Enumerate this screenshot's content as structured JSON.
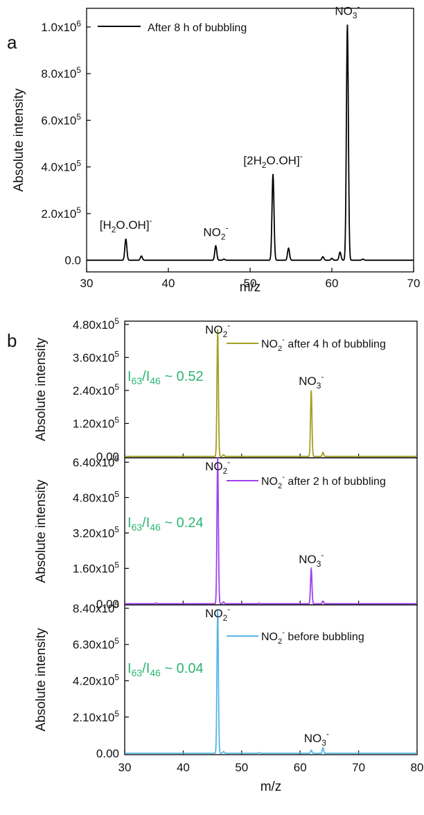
{
  "chart_data": [
    {
      "type": "line",
      "panel_label": "a",
      "xlabel": "m/z",
      "ylabel": "Absolute intensity",
      "xlim": [
        30,
        70
      ],
      "ylim": [
        -50000,
        1080000
      ],
      "x_ticks": [
        30,
        40,
        50,
        60,
        70
      ],
      "y_ticks": [
        {
          "value": 0,
          "label": "0.0"
        },
        {
          "value": 200000,
          "label": "2.0x10",
          "exp": "5"
        },
        {
          "value": 400000,
          "label": "4.0x10",
          "exp": "5"
        },
        {
          "value": 600000,
          "label": "6.0x10",
          "exp": "5"
        },
        {
          "value": 800000,
          "label": "8.0x10",
          "exp": "5"
        },
        {
          "value": 1000000,
          "label": "1.0x10",
          "exp": "6"
        }
      ],
      "legend_position": "top-left",
      "series": [
        {
          "name": "After 8 h of bubbling",
          "color": "#000000",
          "peaks": [
            [
              34.8,
              92000
            ],
            [
              36.7,
              18000
            ],
            [
              45.8,
              62000
            ],
            [
              46.8,
              5000
            ],
            [
              52.8,
              370000
            ],
            [
              54.7,
              52000
            ],
            [
              58.9,
              15000
            ],
            [
              60.0,
              8000
            ],
            [
              61.0,
              35000
            ],
            [
              61.9,
              1010000
            ],
            [
              63.8,
              5000
            ]
          ]
        }
      ],
      "annotations": [
        {
          "x": 34.8,
          "y": 92000,
          "label": "[H2O.OH]-",
          "parts": [
            [
              "[H",
              ""
            ],
            [
              "2",
              "sub"
            ],
            [
              "O.OH]",
              ""
            ],
            [
              "-",
              "sup"
            ]
          ]
        },
        {
          "x": 45.8,
          "y": 62000,
          "label": "NO2-",
          "parts": [
            [
              "NO",
              ""
            ],
            [
              "2",
              "sub"
            ],
            [
              "-",
              "sup"
            ]
          ]
        },
        {
          "x": 52.8,
          "y": 370000,
          "label": "[2H2O.OH]-",
          "parts": [
            [
              "[2H",
              ""
            ],
            [
              "2",
              "sub"
            ],
            [
              "O.OH]",
              ""
            ],
            [
              "-",
              "sup"
            ]
          ]
        },
        {
          "x": 61.9,
          "y": 1010000,
          "label": "NO3-",
          "parts": [
            [
              "NO",
              ""
            ],
            [
              "3",
              "sub"
            ],
            [
              "-",
              "sup"
            ]
          ]
        }
      ]
    },
    {
      "type": "line",
      "panel_label": "b",
      "xlabel": "m/z",
      "ylabel": "Absolute intensity",
      "xlim": [
        30,
        80
      ],
      "x_ticks": [
        30,
        40,
        50,
        60,
        70,
        80
      ],
      "stacked_panels": [
        {
          "series_name": "NO2- after 4 h of bubbling",
          "legend_parts": [
            [
              "NO",
              ""
            ],
            [
              "2",
              "sub"
            ],
            [
              "-",
              "sup"
            ],
            [
              " after 4 h of bubbling",
              ""
            ]
          ],
          "color": "#a3a020",
          "ratio_text": "I63/I46 ~ 0.52",
          "ylim": [
            -5000,
            492000
          ],
          "y_ticks": [
            {
              "value": 0,
              "label": "0.00"
            },
            {
              "value": 120000,
              "label": "1.20x10",
              "exp": "5"
            },
            {
              "value": 240000,
              "label": "2.40x10",
              "exp": "5"
            },
            {
              "value": 360000,
              "label": "3.60x10",
              "exp": "5"
            },
            {
              "value": 480000,
              "label": "4.80x10",
              "exp": "5"
            }
          ],
          "peaks": [
            [
              45.9,
              462000
            ],
            [
              46.9,
              6000
            ],
            [
              61.9,
              240000
            ],
            [
              63.9,
              15000
            ]
          ],
          "annotations": [
            {
              "x": 45.9,
              "y": 462000,
              "label": "NO2-",
              "parts": [
                [
                  "NO",
                  ""
                ],
                [
                  "2",
                  "sub"
                ],
                [
                  "-",
                  "sup"
                ]
              ]
            },
            {
              "x": 61.9,
              "y": 240000,
              "label": "NO3-",
              "parts": [
                [
                  "NO",
                  ""
                ],
                [
                  "3",
                  "sub"
                ],
                [
                  "-",
                  "sup"
                ]
              ]
            }
          ]
        },
        {
          "series_name": "NO2- after 2 h of bubbling",
          "legend_parts": [
            [
              "NO",
              ""
            ],
            [
              "2",
              "sub"
            ],
            [
              "-",
              "sup"
            ],
            [
              " after 2 h of bubbling",
              ""
            ]
          ],
          "color": "#a040f0",
          "ratio_text": "I63/I46 ~ 0.24",
          "ylim": [
            -5000,
            660000
          ],
          "y_ticks": [
            {
              "value": 0,
              "label": "0.00"
            },
            {
              "value": 160000,
              "label": "1.60x10",
              "exp": "5"
            },
            {
              "value": 320000,
              "label": "3.20x10",
              "exp": "5"
            },
            {
              "value": 480000,
              "label": "4.80x10",
              "exp": "5"
            },
            {
              "value": 640000,
              "label": "6.40x10",
              "exp": "5"
            }
          ],
          "peaks": [
            [
              35.3,
              4000
            ],
            [
              45.9,
              662000
            ],
            [
              46.9,
              8000
            ],
            [
              53.0,
              3000
            ],
            [
              61.9,
              158000
            ],
            [
              63.9,
              12000
            ]
          ],
          "annotations": [
            {
              "x": 45.9,
              "y": 662000,
              "label": "NO2-",
              "parts": [
                [
                  "NO",
                  ""
                ],
                [
                  "2",
                  "sub"
                ],
                [
                  "-",
                  "sup"
                ]
              ]
            },
            {
              "x": 61.9,
              "y": 158000,
              "label": "NO3-",
              "parts": [
                [
                  "NO",
                  ""
                ],
                [
                  "3",
                  "sub"
                ],
                [
                  "-",
                  "sup"
                ]
              ]
            }
          ]
        },
        {
          "series_name": "NO2- before bubbling",
          "legend_parts": [
            [
              "NO",
              ""
            ],
            [
              "2",
              "sub"
            ],
            [
              "-",
              "sup"
            ],
            [
              " before bubbling",
              ""
            ]
          ],
          "color": "#56b7e6",
          "ratio_text": "I63/I46 ~ 0.04",
          "ylim": [
            -8000,
            860000
          ],
          "y_ticks": [
            {
              "value": 0,
              "label": "0.00"
            },
            {
              "value": 210000,
              "label": "2.10x10",
              "exp": "5"
            },
            {
              "value": 420000,
              "label": "4.20x10",
              "exp": "5"
            },
            {
              "value": 630000,
              "label": "6.30x10",
              "exp": "5"
            },
            {
              "value": 840000,
              "label": "8.40x10",
              "exp": "5"
            }
          ],
          "peaks": [
            [
              45.9,
              830000
            ],
            [
              46.9,
              10000
            ],
            [
              53.0,
              4000
            ],
            [
              61.9,
              18000
            ],
            [
              63.9,
              32000
            ]
          ],
          "annotations": [
            {
              "x": 45.9,
              "y": 830000,
              "label": "NO2-",
              "parts": [
                [
                  "NO",
                  ""
                ],
                [
                  "2",
                  "sub"
                ],
                [
                  "-",
                  "sup"
                ]
              ]
            },
            {
              "x": 62.8,
              "y": 32000,
              "label": "NO3-",
              "parts": [
                [
                  "NO",
                  ""
                ],
                [
                  "3",
                  "sub"
                ],
                [
                  "-",
                  "sup"
                ]
              ]
            }
          ]
        }
      ]
    }
  ]
}
